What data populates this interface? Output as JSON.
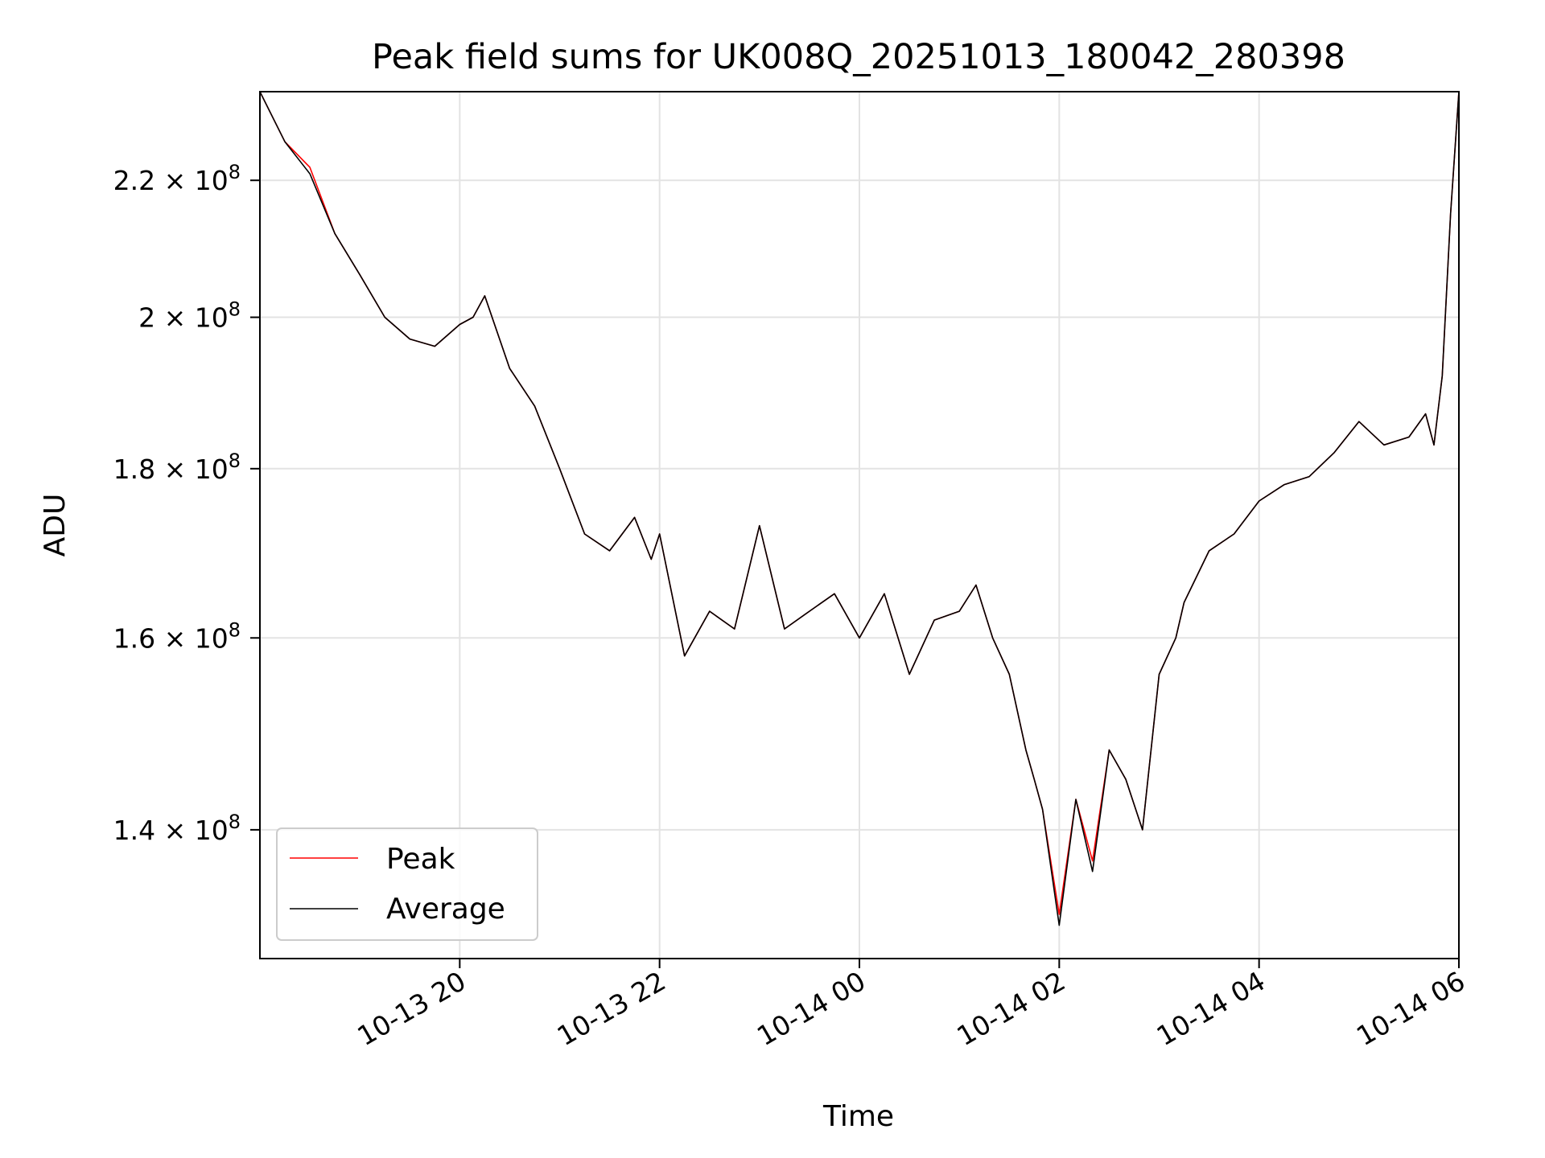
{
  "chart_data": {
    "type": "line",
    "title": "Peak field sums for UK008Q_20251013_180042_280398",
    "xlabel": "Time",
    "ylabel": "ADU",
    "y_scale": "log",
    "grid": true,
    "legend_position": "lower-left",
    "xlim": [
      "2025-10-13 18:00",
      "2025-10-14 06:00"
    ],
    "ylim": [
      128000000,
      234000000
    ],
    "x_ticks": [
      {
        "value": "2025-10-13 20:00",
        "label": "10-13 20"
      },
      {
        "value": "2025-10-13 22:00",
        "label": "10-13 22"
      },
      {
        "value": "2025-10-14 00:00",
        "label": "10-14 00"
      },
      {
        "value": "2025-10-14 02:00",
        "label": "10-14 02"
      },
      {
        "value": "2025-10-14 04:00",
        "label": "10-14 04"
      },
      {
        "value": "2025-10-14 06:00",
        "label": "10-14 06"
      }
    ],
    "y_ticks": [
      {
        "value": 140000000,
        "mantissa": "1.4",
        "exponent": "8"
      },
      {
        "value": 160000000,
        "mantissa": "1.6",
        "exponent": "8"
      },
      {
        "value": 180000000,
        "mantissa": "1.8",
        "exponent": "8"
      },
      {
        "value": 200000000,
        "mantissa": "2",
        "exponent": "8"
      },
      {
        "value": 220000000,
        "mantissa": "2.2",
        "exponent": "8"
      }
    ],
    "x": [
      "2025-10-13 18:00",
      "2025-10-13 18:15",
      "2025-10-13 18:30",
      "2025-10-13 18:45",
      "2025-10-13 19:00",
      "2025-10-13 19:15",
      "2025-10-13 19:30",
      "2025-10-13 19:45",
      "2025-10-13 20:00",
      "2025-10-13 20:08",
      "2025-10-13 20:15",
      "2025-10-13 20:30",
      "2025-10-13 20:45",
      "2025-10-13 21:00",
      "2025-10-13 21:15",
      "2025-10-13 21:30",
      "2025-10-13 21:45",
      "2025-10-13 21:55",
      "2025-10-13 22:00",
      "2025-10-13 22:15",
      "2025-10-13 22:30",
      "2025-10-13 22:45",
      "2025-10-13 23:00",
      "2025-10-13 23:15",
      "2025-10-13 23:30",
      "2025-10-13 23:45",
      "2025-10-14 00:00",
      "2025-10-14 00:15",
      "2025-10-14 00:30",
      "2025-10-14 00:45",
      "2025-10-14 01:00",
      "2025-10-14 01:10",
      "2025-10-14 01:20",
      "2025-10-14 01:30",
      "2025-10-14 01:40",
      "2025-10-14 01:45",
      "2025-10-14 01:50",
      "2025-10-14 02:00",
      "2025-10-14 02:10",
      "2025-10-14 02:20",
      "2025-10-14 02:30",
      "2025-10-14 02:40",
      "2025-10-14 02:50",
      "2025-10-14 03:00",
      "2025-10-14 03:10",
      "2025-10-14 03:15",
      "2025-10-14 03:30",
      "2025-10-14 03:45",
      "2025-10-14 04:00",
      "2025-10-14 04:15",
      "2025-10-14 04:30",
      "2025-10-14 04:45",
      "2025-10-14 05:00",
      "2025-10-14 05:15",
      "2025-10-14 05:30",
      "2025-10-14 05:40",
      "2025-10-14 05:45",
      "2025-10-14 05:50",
      "2025-10-14 05:55",
      "2025-10-14 06:00"
    ],
    "series": [
      {
        "name": "Peak",
        "color": "#ff0000",
        "values": [
          234000000,
          226000000,
          222000000,
          212000000,
          206000000,
          200000000,
          197000000,
          196000000,
          199000000,
          200000000,
          203000000,
          193000000,
          188000000,
          180000000,
          172000000,
          170000000,
          174000000,
          169000000,
          172000000,
          158000000,
          163000000,
          161000000,
          173000000,
          161000000,
          163000000,
          165000000,
          160000000,
          165000000,
          156000000,
          162000000,
          163000000,
          166000000,
          160000000,
          156000000,
          148000000,
          145000000,
          142000000,
          132000000,
          143000000,
          137000000,
          148000000,
          145000000,
          140000000,
          156000000,
          160000000,
          164000000,
          170000000,
          172000000,
          176000000,
          178000000,
          179000000,
          182000000,
          186000000,
          183000000,
          184000000,
          187000000,
          183000000,
          192000000,
          215000000,
          234000000
        ]
      },
      {
        "name": "Average",
        "color": "#000000",
        "values": [
          234000000,
          226000000,
          221000000,
          212000000,
          206000000,
          200000000,
          197000000,
          196000000,
          199000000,
          200000000,
          203000000,
          193000000,
          188000000,
          180000000,
          172000000,
          170000000,
          174000000,
          169000000,
          172000000,
          158000000,
          163000000,
          161000000,
          173000000,
          161000000,
          163000000,
          165000000,
          160000000,
          165000000,
          156000000,
          162000000,
          163000000,
          166000000,
          160000000,
          156000000,
          148000000,
          145000000,
          142000000,
          131000000,
          143000000,
          136000000,
          148000000,
          145000000,
          140000000,
          156000000,
          160000000,
          164000000,
          170000000,
          172000000,
          176000000,
          178000000,
          179000000,
          182000000,
          186000000,
          183000000,
          184000000,
          187000000,
          183000000,
          192000000,
          215000000,
          234000000
        ]
      }
    ]
  }
}
